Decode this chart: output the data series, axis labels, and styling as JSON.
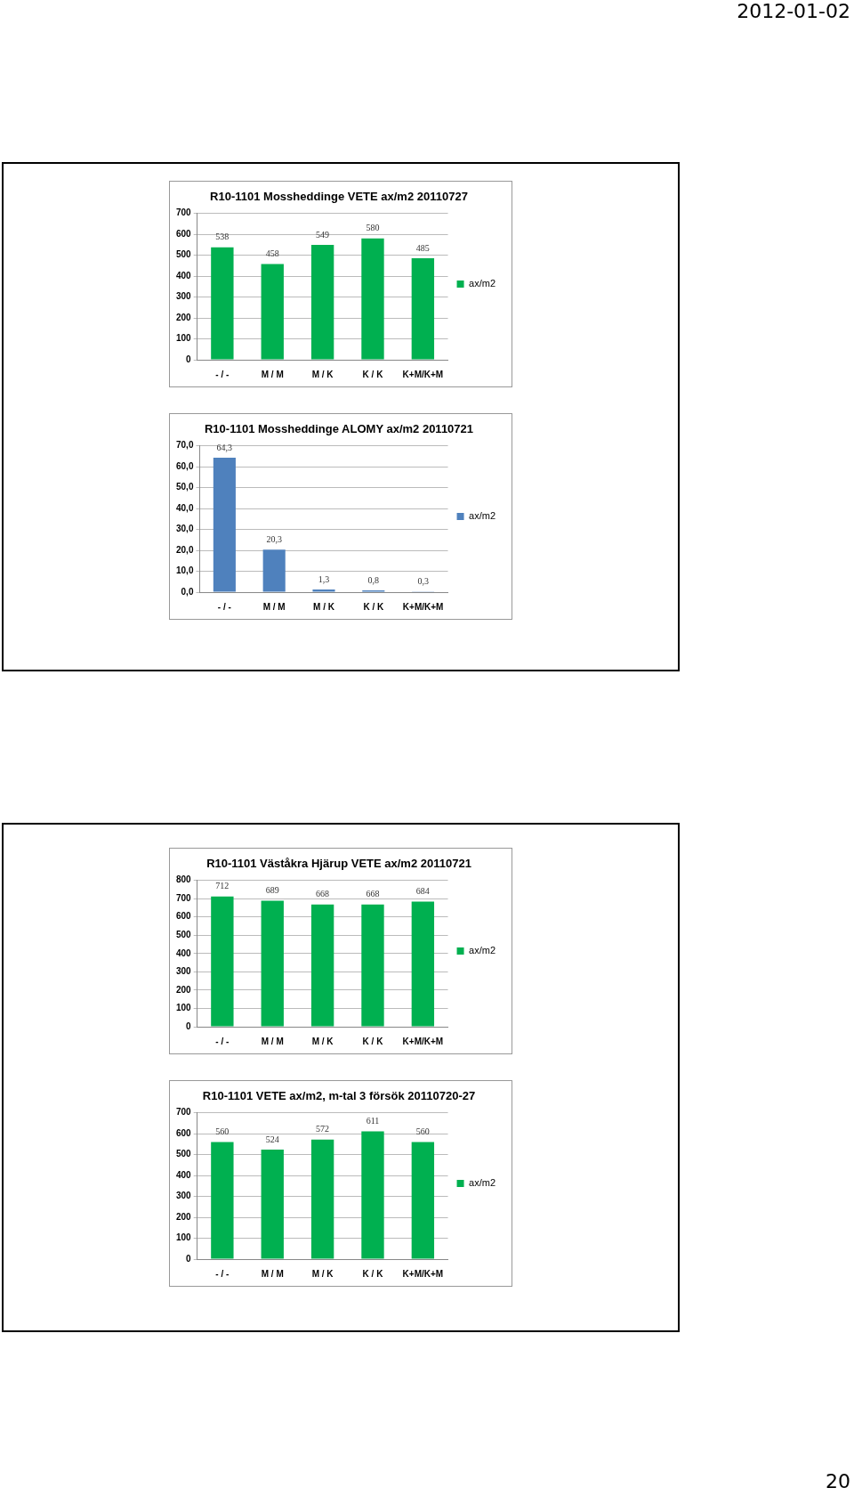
{
  "chart_data": [
    {
      "type": "bar",
      "title": "R10-1101 Mossheddinge VETE ax/m2 20110727",
      "categories": [
        "- / -",
        "M / M",
        "M / K",
        "K / K",
        "K+M/K+M"
      ],
      "series": [
        {
          "name": "ax/m2",
          "color": "#00b050",
          "values": [
            538,
            458,
            549,
            580,
            485
          ]
        }
      ],
      "ylim": [
        0,
        700
      ],
      "yticks": [
        0,
        100,
        200,
        300,
        400,
        500,
        600,
        700
      ],
      "grid": "y",
      "legend": "right",
      "data_labels": true,
      "annotations": [
        "2012-01-02"
      ]
    },
    {
      "type": "bar",
      "title": "R10-1101 Mossheddinge ALOMY ax/m2 20110721",
      "categories": [
        "- / -",
        "M / M",
        "M / K",
        "K / K",
        "K+M/K+M"
      ],
      "series": [
        {
          "name": "ax/m2",
          "color": "#4f81bd",
          "values": [
            64.3,
            20.3,
            1.3,
            0.8,
            0.3
          ],
          "value_labels": [
            "64,3",
            "20,3",
            "1,3",
            "0,8",
            "0,3"
          ]
        }
      ],
      "ylim": [
        0,
        70
      ],
      "yticks": [
        {
          "value": 0,
          "label": "0,0"
        },
        {
          "value": 10,
          "label": "10,0"
        },
        {
          "value": 20,
          "label": "20,0"
        },
        {
          "value": 30,
          "label": "30,0"
        },
        {
          "value": 40,
          "label": "40,0"
        },
        {
          "value": 50,
          "label": "50,0"
        },
        {
          "value": 60,
          "label": "60,0"
        },
        {
          "value": 70,
          "label": "70,0"
        }
      ],
      "grid": "y",
      "legend": "right"
    },
    {
      "type": "bar",
      "title": "R10-1101 Väståkra Hjärup VETE ax/m2 20110721",
      "categories": [
        "- / -",
        "M / M",
        "M / K",
        "K / K",
        "K+M/K+M"
      ],
      "series": [
        {
          "name": "ax/m2",
          "color": "#00b050",
          "values": [
            712,
            689,
            668,
            668,
            684
          ]
        }
      ],
      "ylim": [
        0,
        800
      ],
      "yticks": [
        0,
        100,
        200,
        300,
        400,
        500,
        600,
        700,
        800
      ],
      "grid": "y",
      "legend": "right",
      "data_labels": true
    },
    {
      "type": "bar",
      "title": "R10-1101 VETE ax/m2, m-tal 3 försök 20110720-27",
      "categories": [
        "- / -",
        "M / M",
        "M / K",
        "K / K",
        "K+M/K+M"
      ],
      "series": [
        {
          "name": "ax/m2",
          "color": "#00b050",
          "values": [
            560,
            524,
            572,
            611,
            560
          ]
        }
      ],
      "ylim": [
        0,
        700
      ],
      "yticks": [
        0,
        100,
        200,
        300,
        400,
        500,
        600,
        700
      ],
      "grid": "y",
      "legend": "right",
      "data_labels": true,
      "annotations": [
        "20"
      ]
    }
  ]
}
